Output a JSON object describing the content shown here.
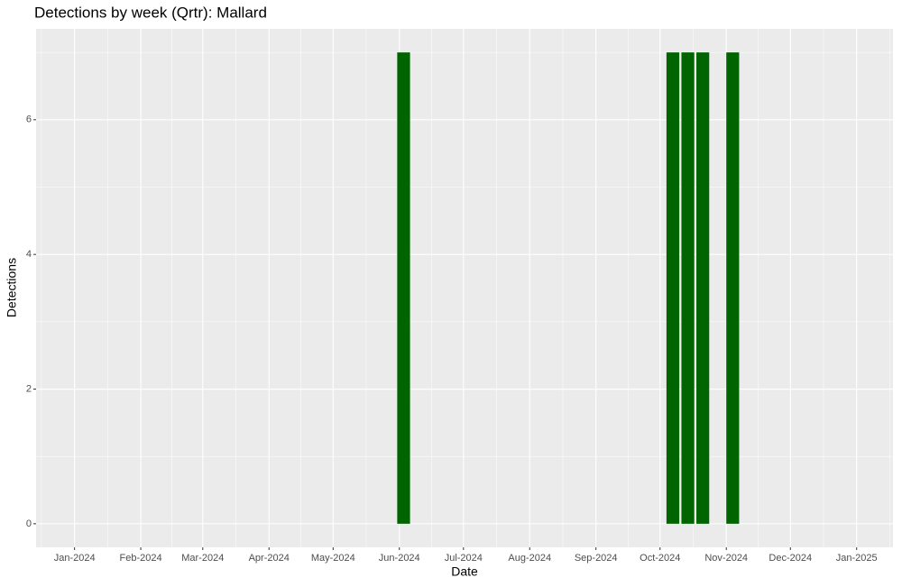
{
  "chart_data": {
    "type": "bar",
    "title": "Detections by week (Qrtr): Mallard",
    "x_label": "Date",
    "y_label": "Detections",
    "x": [
      154,
      280,
      287,
      294,
      308
    ],
    "values": [
      7,
      7,
      7,
      7,
      7
    ],
    "color": "#006400",
    "xlim": [
      -18,
      383
    ],
    "xticks": [
      {
        "value": 0,
        "label": "Jan-2024"
      },
      {
        "value": 31,
        "label": "Feb-2024"
      },
      {
        "value": 60,
        "label": "Mar-2024"
      },
      {
        "value": 91,
        "label": "Apr-2024"
      },
      {
        "value": 121,
        "label": "May-2024"
      },
      {
        "value": 152,
        "label": "Jun-2024"
      },
      {
        "value": 182,
        "label": "Jul-2024"
      },
      {
        "value": 213,
        "label": "Aug-2024"
      },
      {
        "value": 244,
        "label": "Sep-2024"
      },
      {
        "value": 274,
        "label": "Oct-2024"
      },
      {
        "value": 305,
        "label": "Nov-2024"
      },
      {
        "value": 335,
        "label": "Dec-2024"
      },
      {
        "value": 366,
        "label": "Jan-2025"
      }
    ],
    "ylim": [
      -0.35,
      7.35
    ],
    "yticks": [
      0,
      2,
      4,
      6
    ],
    "grid": true
  }
}
